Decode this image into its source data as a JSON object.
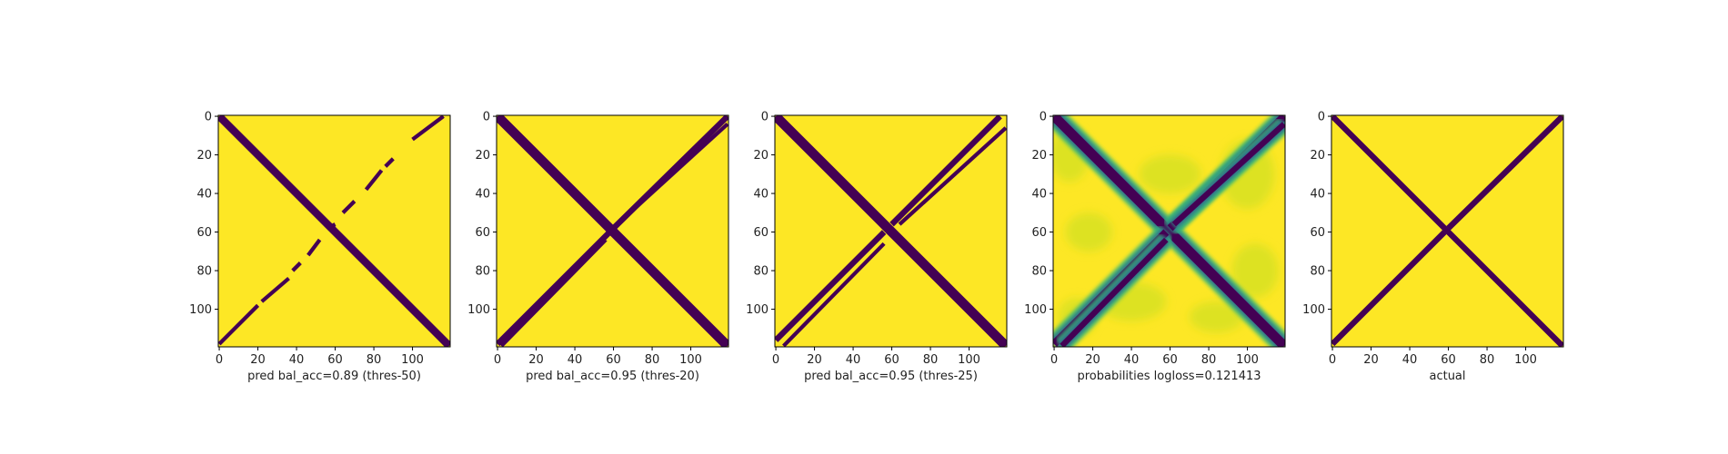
{
  "chart_data": [
    {
      "type": "heatmap",
      "title": "",
      "xlabel": "pred bal_acc=0.89 (thres-50)",
      "ylabel": "",
      "xlim": [
        0,
        119
      ],
      "ylim": [
        119,
        0
      ],
      "x_ticks": [
        0,
        20,
        40,
        60,
        80,
        100
      ],
      "y_ticks": [
        0,
        20,
        40,
        60,
        80,
        100
      ],
      "x_tick_labels": [
        "0",
        "20",
        "40",
        "60",
        "80",
        "100"
      ],
      "y_tick_labels": [
        "0",
        "20",
        "40",
        "60",
        "80",
        "100"
      ],
      "colormap": "viridis",
      "binary": true,
      "background_color": "#fde725",
      "mark_color": "#440154",
      "main_diagonal": {
        "from": [
          0,
          0
        ],
        "to": [
          119,
          119
        ],
        "width_cells": 4
      },
      "anti_diagonal_segments": [
        [
          0,
          118,
          20,
          98
        ],
        [
          22,
          96,
          36,
          84
        ],
        [
          38,
          80,
          42,
          76
        ],
        [
          46,
          72,
          52,
          64
        ],
        [
          56,
          58,
          60,
          56
        ],
        [
          64,
          50,
          70,
          44
        ],
        [
          76,
          38,
          84,
          28
        ],
        [
          86,
          26,
          90,
          22
        ],
        [
          100,
          12,
          116,
          0
        ]
      ],
      "anti_diagonal_width_cells": 2
    },
    {
      "type": "heatmap",
      "title": "",
      "xlabel": "pred bal_acc=0.95 (thres-20)",
      "ylabel": "",
      "xlim": [
        0,
        119
      ],
      "ylim": [
        119,
        0
      ],
      "x_ticks": [
        0,
        20,
        40,
        60,
        80,
        100
      ],
      "y_ticks": [
        0,
        20,
        40,
        60,
        80,
        100
      ],
      "x_tick_labels": [
        "0",
        "20",
        "40",
        "60",
        "80",
        "100"
      ],
      "y_tick_labels": [
        "0",
        "20",
        "40",
        "60",
        "80",
        "100"
      ],
      "colormap": "viridis",
      "binary": true,
      "background_color": "#fde725",
      "mark_color": "#440154",
      "main_diagonal": {
        "from": [
          0,
          0
        ],
        "to": [
          119,
          119
        ],
        "width_cells": 5
      },
      "anti_diagonal_segments": [
        [
          0,
          118,
          58,
          60
        ],
        [
          60,
          58,
          119,
          0
        ]
      ],
      "parallel_segments": [
        [
          2,
          119,
          56,
          64
        ],
        [
          62,
          56,
          119,
          4
        ]
      ],
      "anti_diagonal_width_cells": 3
    },
    {
      "type": "heatmap",
      "title": "",
      "xlabel": "pred bal_acc=0.95 (thres-25)",
      "ylabel": "",
      "xlim": [
        0,
        119
      ],
      "ylim": [
        119,
        0
      ],
      "x_ticks": [
        0,
        20,
        40,
        60,
        80,
        100
      ],
      "y_ticks": [
        0,
        20,
        40,
        60,
        80,
        100
      ],
      "x_tick_labels": [
        "0",
        "20",
        "40",
        "60",
        "80",
        "100"
      ],
      "y_tick_labels": [
        "0",
        "20",
        "40",
        "60",
        "80",
        "100"
      ],
      "colormap": "viridis",
      "binary": true,
      "background_color": "#fde725",
      "mark_color": "#440154",
      "main_diagonal": {
        "from": [
          0,
          0
        ],
        "to": [
          119,
          119
        ],
        "width_cells": 5
      },
      "anti_diagonal_segments": [
        [
          0,
          116,
          56,
          60
        ],
        [
          60,
          56,
          116,
          0
        ]
      ],
      "parallel_segments": [
        [
          4,
          119,
          56,
          66
        ],
        [
          64,
          56,
          119,
          6
        ]
      ],
      "anti_diagonal_width_cells": 3
    },
    {
      "type": "heatmap",
      "title": "",
      "xlabel": "probabilities logloss=0.121413",
      "ylabel": "",
      "xlim": [
        0,
        119
      ],
      "ylim": [
        119,
        0
      ],
      "x_ticks": [
        0,
        20,
        40,
        60,
        80,
        100
      ],
      "y_ticks": [
        0,
        20,
        40,
        60,
        80,
        100
      ],
      "x_tick_labels": [
        "0",
        "20",
        "40",
        "60",
        "80",
        "100"
      ],
      "y_tick_labels": [
        "0",
        "20",
        "40",
        "60",
        "80",
        "100"
      ],
      "colormap": "viridis",
      "binary": false,
      "value_range": [
        0,
        1
      ],
      "background_color": "#fde725",
      "mark_color": "#440154",
      "main_diagonal": {
        "from": [
          0,
          0
        ],
        "to": [
          119,
          119
        ],
        "width_cells": 5
      },
      "anti_diagonal_segments": [
        [
          0,
          118,
          58,
          60
        ],
        [
          60,
          58,
          119,
          0
        ]
      ],
      "parallel_segments": [
        [
          4,
          119,
          58,
          64
        ],
        [
          62,
          56,
          119,
          4
        ]
      ],
      "anti_diagonal_width_cells": 4
    },
    {
      "type": "heatmap",
      "title": "",
      "xlabel": "actual",
      "ylabel": "",
      "xlim": [
        0,
        119
      ],
      "ylim": [
        119,
        0
      ],
      "x_ticks": [
        0,
        20,
        40,
        60,
        80,
        100
      ],
      "y_ticks": [
        0,
        20,
        40,
        60,
        80,
        100
      ],
      "x_tick_labels": [
        "0",
        "20",
        "40",
        "60",
        "80",
        "100"
      ],
      "y_tick_labels": [
        "0",
        "20",
        "40",
        "60",
        "80",
        "100"
      ],
      "colormap": "viridis",
      "binary": true,
      "background_color": "#fde725",
      "mark_color": "#440154",
      "main_diagonal": {
        "from": [
          0,
          0
        ],
        "to": [
          119,
          119
        ],
        "width_cells": 3
      },
      "anti_diagonal_segments": [
        [
          0,
          118,
          58,
          60
        ],
        [
          60,
          58,
          119,
          0
        ]
      ],
      "anti_diagonal_width_cells": 3
    }
  ]
}
